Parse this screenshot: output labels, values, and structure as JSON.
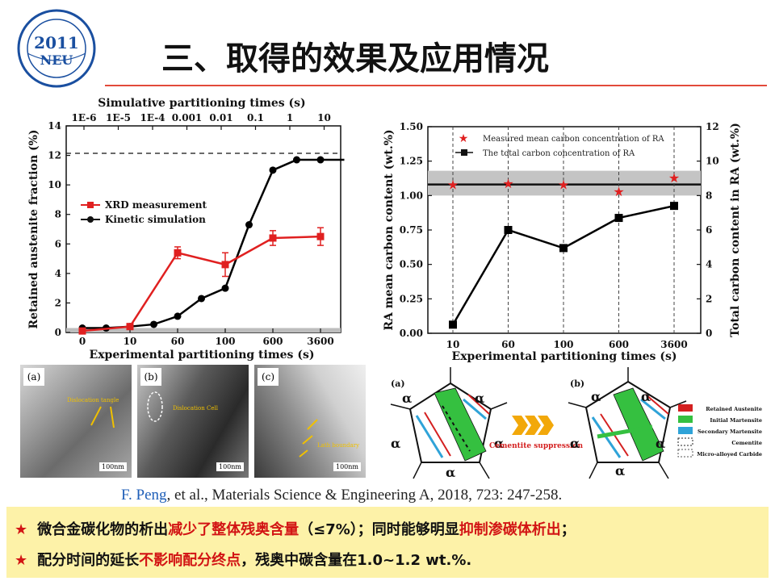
{
  "logo": {
    "year": "2011",
    "org": "NEU"
  },
  "title": "三、取得的效果及应用情况",
  "left_chart": {
    "top_axis_title": "Simulative partitioning times (s)",
    "top_ticks": [
      "1E-6",
      "1E-5",
      "1E-4",
      "0.001",
      "0.01",
      "0.1",
      "1",
      "10"
    ],
    "bottom_ticks": [
      "0",
      "10",
      "60",
      "100",
      "600",
      "3600"
    ],
    "xlabel": "Experimental partitioning times (s)",
    "ylabel": "Retained austenite fraction (%)",
    "yticks": [
      "0",
      "2",
      "4",
      "6",
      "8",
      "10",
      "12",
      "14"
    ],
    "legend_xrd": "XRD measurement",
    "legend_kin": "Kinetic simulation"
  },
  "right_chart": {
    "xticks": [
      "10",
      "60",
      "100",
      "600",
      "3600"
    ],
    "xlabel": "Experimental partitioning times (s)",
    "ylabel_left": "RA mean carbon content  (wt.%)",
    "ylabel_right": "Total carbon content in RA (wt.%)",
    "yticks_left": [
      "0.00",
      "0.25",
      "0.50",
      "0.75",
      "1.00",
      "1.25",
      "1.50"
    ],
    "yticks_right": [
      "0",
      "2",
      "4",
      "6",
      "8",
      "10",
      "12"
    ],
    "legend_measured": "Measured mean carbon concentration of RA",
    "legend_total": "The total carbon concentration of RA"
  },
  "chart_data": [
    {
      "type": "line",
      "xlabel": "Experimental partitioning times (s)",
      "ylabel": "Retained austenite fraction (%)",
      "categories": [
        "0",
        "10",
        "60",
        "100",
        "600",
        "3600"
      ],
      "ylim": [
        0,
        14
      ],
      "reference_line": 12.1,
      "shaded_band": [
        0,
        0.3
      ],
      "series": [
        {
          "name": "XRD measurement",
          "color": "#e02020",
          "x": [
            0,
            1,
            2,
            3,
            4,
            5
          ],
          "values": [
            0.1,
            0.4,
            5.4,
            4.6,
            6.4,
            6.5
          ],
          "errors": [
            0,
            0,
            0.4,
            0.8,
            0.5,
            0.6
          ]
        },
        {
          "name": "Kinetic simulation",
          "color": "#000000",
          "x": [
            0,
            0.5,
            1,
            1.5,
            2,
            2.5,
            3,
            3.5,
            4,
            4.5,
            5,
            5.5
          ],
          "values": [
            0.3,
            0.3,
            0.4,
            0.55,
            1.1,
            2.3,
            3.0,
            7.3,
            11.0,
            11.7,
            11.7,
            11.7
          ]
        }
      ]
    },
    {
      "type": "line",
      "xlabel": "Experimental partitioning times (s)",
      "ylabel": "RA mean carbon content  (wt.%)",
      "y2label": "Total carbon content in RA (wt.%)",
      "categories": [
        "10",
        "60",
        "100",
        "600",
        "3600"
      ],
      "ylim": [
        0,
        1.5
      ],
      "y2lim": [
        0,
        12
      ],
      "reference_line": 1.08,
      "shaded_band": [
        1.0,
        1.18
      ],
      "series": [
        {
          "name": "Measured mean carbon concentration of RA",
          "color": "#e02020",
          "marker": "star",
          "values": [
            1.08,
            1.09,
            1.08,
            1.03,
            1.13
          ]
        },
        {
          "name": "The total carbon concentration of RA",
          "color": "#000000",
          "marker": "square",
          "axis": "right",
          "values": [
            0.5,
            6.0,
            4.95,
            6.7,
            7.4
          ]
        }
      ]
    }
  ],
  "micrographs": [
    {
      "label": "(a)",
      "annotation": "Dislocation tangle",
      "scale": "100nm"
    },
    {
      "label": "(b)",
      "annotation": "Dislocation Cell",
      "scale": "100nm"
    },
    {
      "label": "(c)",
      "annotation": "Lath boundary",
      "scale": "100nm"
    }
  ],
  "schematic": {
    "label_a": "(a)",
    "label_b": "(b)",
    "phase_symbol": "α",
    "arrow_text": "Cementite suppression",
    "legend": [
      "Retained Austenite",
      "Initial Martensite",
      "Secondary Martensite",
      "Cementite",
      "Micro-alloyed Carbide"
    ],
    "legend_colors": [
      "#d42020",
      "#35c040",
      "#2fa3d8",
      "#222222",
      "#555555"
    ]
  },
  "citation": {
    "author": "F. Peng",
    "rest": ", et al., Materials Science & Engineering A, 2018, 723: 247-258."
  },
  "conclusions": {
    "star": "★",
    "line1_a": "微合金碳化物的析出",
    "line1_b": "减少了整体残奥含量",
    "line1_c": "（≤7%）；同时能够明显",
    "line1_d": "抑制渗碳体析出",
    "line1_e": "；",
    "line2_a": "配分时间的延长",
    "line2_b": "不影响配分终点",
    "line2_c": "，残奥中碳含量在1.0~1.2 wt.%."
  }
}
